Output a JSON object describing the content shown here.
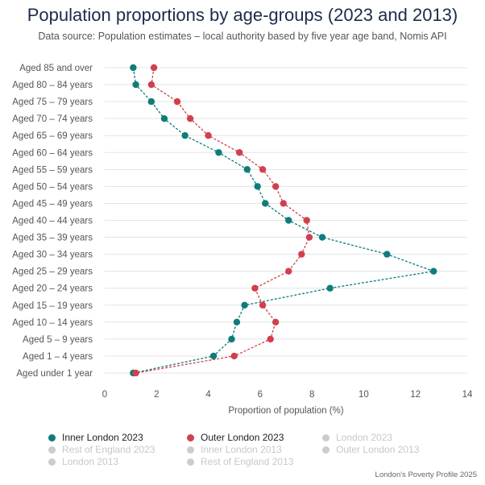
{
  "title": "Population proportions by age-groups (2023 and 2013)",
  "subtitle": "Data source: Population estimates – local authority based by five year age band, Nomis API",
  "footer": "London's Poverty Profile 2025",
  "chart_data": {
    "type": "line",
    "orientation": "horizontal-dot-plot",
    "xlabel": "Proportion of population (%)",
    "ylabel": "",
    "xlim": [
      0,
      14
    ],
    "xticks": [
      0,
      2,
      4,
      6,
      8,
      10,
      12,
      14
    ],
    "grid": true,
    "legend_position": "bottom",
    "categories": [
      "Aged 85 and over",
      "Aged 80 – 84 years",
      "Aged 75 – 79 years",
      "Aged 70 – 74 years",
      "Aged 65 – 69 years",
      "Aged 60 – 64 years",
      "Aged 55 – 59 years",
      "Aged 50 – 54 years",
      "Aged 45 – 49 years",
      "Aged 40 – 44 years",
      "Aged 35 – 39 years",
      "Aged 30 – 34 years",
      "Aged 25 – 29 years",
      "Aged 20 – 24 years",
      "Aged 15 – 19 years",
      "Aged 10 – 14 years",
      "Aged 5 – 9 years",
      "Aged 1 – 4 years",
      "Aged under 1 year"
    ],
    "series": [
      {
        "name": "Inner London 2023",
        "color": "#0e7c7b",
        "values": [
          1.1,
          1.2,
          1.8,
          2.3,
          3.1,
          4.4,
          5.5,
          5.9,
          6.2,
          7.1,
          8.4,
          10.9,
          12.7,
          8.7,
          5.4,
          5.1,
          4.9,
          4.2,
          1.1
        ]
      },
      {
        "name": "Outer London 2023",
        "color": "#d1404f",
        "values": [
          1.9,
          1.8,
          2.8,
          3.3,
          4.0,
          5.2,
          6.1,
          6.6,
          6.9,
          7.8,
          7.9,
          7.6,
          7.1,
          5.8,
          6.1,
          6.6,
          6.4,
          5.0,
          1.2
        ]
      }
    ],
    "legend": [
      {
        "label": "Inner London 2023",
        "color": "#0e7c7b",
        "active": true
      },
      {
        "label": "Outer London 2023",
        "color": "#d1404f",
        "active": true
      },
      {
        "label": "London 2023",
        "color": "#cccccc",
        "active": false
      },
      {
        "label": "Rest of England 2023",
        "color": "#cccccc",
        "active": false
      },
      {
        "label": "Inner London 2013",
        "color": "#cccccc",
        "active": false
      },
      {
        "label": "Outer London 2013",
        "color": "#cccccc",
        "active": false
      },
      {
        "label": "London 2013",
        "color": "#cccccc",
        "active": false
      },
      {
        "label": "Rest of England 2013",
        "color": "#cccccc",
        "active": false
      }
    ]
  }
}
